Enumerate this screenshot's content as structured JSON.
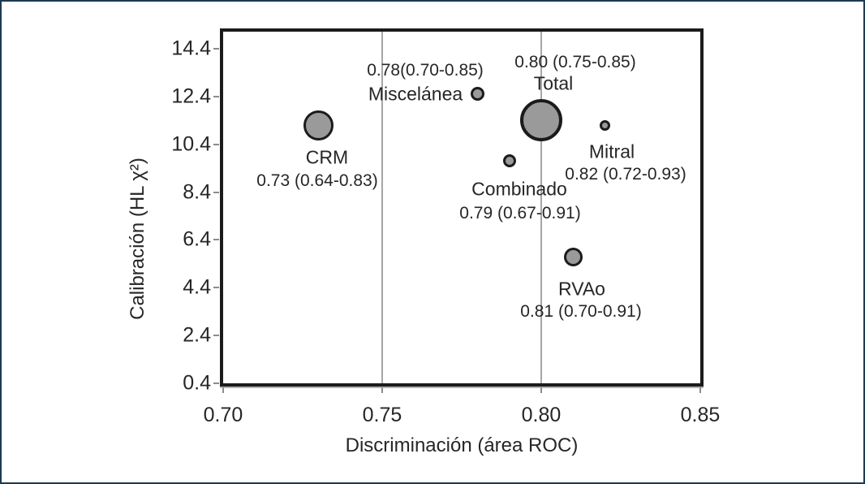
{
  "window": {
    "background": "#ffffff",
    "frame_color": "#1c3a52"
  },
  "style": {
    "plot_border_color": "#1b1b1b",
    "gridline_color": "#a6a6a6",
    "tick_color": "#8c8c8c",
    "bubble_fill": "#9a9a9a",
    "bubble_stroke": "#1b1b1b",
    "text_color": "#262626"
  },
  "chart_data": {
    "type": "scatter",
    "subtype": "bubble",
    "title": "",
    "xlabel": "Discriminación (área ROC)",
    "ylabel": "Calibración (HL χ²)",
    "xlim": [
      0.7,
      0.85
    ],
    "ylim": [
      0.4,
      15.1
    ],
    "x_ticks": [
      0.7,
      0.75,
      0.8,
      0.85
    ],
    "x_tick_labels": [
      "0.70",
      "0.75",
      "0.80",
      "0.85"
    ],
    "y_ticks": [
      14.4,
      12.4,
      10.4,
      8.4,
      6.4,
      4.4,
      2.4,
      0.4
    ],
    "y_tick_labels": [
      "14.4",
      "12.4",
      "10.4",
      "8.4",
      "6.4",
      "4.4",
      "2.4",
      "0.4"
    ],
    "grid": {
      "vertical_lines_at_x": [
        0.75,
        0.8
      ],
      "horizontal_lines": false
    },
    "legend_position": "none",
    "points": [
      {
        "name": "CRM",
        "x": 0.73,
        "y": 11.2,
        "roc_area": 0.73,
        "roc_ci": "0.64-0.83",
        "bubble_radius_px": 18.5,
        "stroke_px": 3.5,
        "labels": [
          {
            "text": "CRM",
            "kind": "name",
            "cx": 401,
            "cy": 192
          },
          {
            "text": "0.73 (0.64-0.83)",
            "kind": "value",
            "cx": 389,
            "cy": 221
          }
        ]
      },
      {
        "name": "Miscelánea",
        "x": 0.78,
        "y": 12.5,
        "roc_area": 0.78,
        "roc_ci": "0.70-0.85",
        "bubble_radius_px": 8.5,
        "stroke_px": 3,
        "labels": [
          {
            "text": "0.78(0.70-0.85)",
            "kind": "value",
            "cx": 522,
            "cy": 85
          },
          {
            "text": "Miscelánea",
            "kind": "name",
            "cx": 510,
            "cy": 114
          }
        ]
      },
      {
        "name": "Total",
        "x": 0.8,
        "y": 11.4,
        "roc_area": 0.8,
        "roc_ci": "0.75-0.85",
        "bubble_radius_px": 26,
        "stroke_px": 4,
        "labels": [
          {
            "text": "0.80 (0.75-0.85)",
            "kind": "value",
            "cx": 707,
            "cy": 75
          },
          {
            "text": "Total",
            "kind": "name",
            "cx": 680,
            "cy": 101
          }
        ]
      },
      {
        "name": "Mitral",
        "x": 0.82,
        "y": 11.2,
        "roc_area": 0.82,
        "roc_ci": "0.72-0.93",
        "bubble_radius_px": 6.5,
        "stroke_px": 3,
        "labels": [
          {
            "text": "Mitral",
            "kind": "name",
            "cx": 752,
            "cy": 185
          },
          {
            "text": "0.82 (0.72-0.93)",
            "kind": "value",
            "cx": 769,
            "cy": 213
          }
        ]
      },
      {
        "name": "Combinado",
        "x": 0.79,
        "y": 9.7,
        "roc_area": 0.79,
        "roc_ci": "0.67-0.91",
        "bubble_radius_px": 8,
        "stroke_px": 3,
        "labels": [
          {
            "text": "Combinado",
            "kind": "name",
            "cx": 638,
            "cy": 231
          },
          {
            "text": "0.79 (0.67-0.91)",
            "kind": "value",
            "cx": 639,
            "cy": 261
          }
        ]
      },
      {
        "name": "RVAo",
        "x": 0.81,
        "y": 5.7,
        "roc_area": 0.81,
        "roc_ci": "0.70-0.91",
        "bubble_radius_px": 11.5,
        "stroke_px": 3,
        "labels": [
          {
            "text": "RVAo",
            "kind": "name",
            "cx": 715,
            "cy": 354
          },
          {
            "text": "0.81 (0.70-0.91)",
            "kind": "value",
            "cx": 714,
            "cy": 382
          }
        ]
      }
    ]
  }
}
